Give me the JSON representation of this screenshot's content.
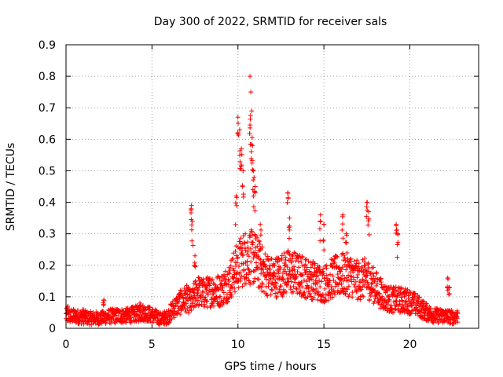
{
  "chart_data": {
    "type": "scatter",
    "title": "Day 300 of 2022, SRMTID for receiver sals",
    "xlabel": "GPS time / hours",
    "ylabel": "SRMTID / TECUs",
    "xlim": [
      0,
      24
    ],
    "ylim": [
      0,
      0.9
    ],
    "xticks": [
      "0",
      "5",
      "10",
      "15",
      "20"
    ],
    "yticks": [
      "0",
      "0.1",
      "0.2",
      "0.3",
      "0.4",
      "0.5",
      "0.6",
      "0.7",
      "0.8",
      "0.9"
    ],
    "grid": true,
    "marker": "+",
    "color": "#ff0000",
    "series": [
      {
        "name": "SRMTID",
        "profile": [
          [
            0.0,
            0.04
          ],
          [
            0.5,
            0.038
          ],
          [
            1.0,
            0.035
          ],
          [
            1.5,
            0.032
          ],
          [
            2.0,
            0.032
          ],
          [
            2.5,
            0.038
          ],
          [
            3.0,
            0.04
          ],
          [
            3.5,
            0.04
          ],
          [
            4.0,
            0.045
          ],
          [
            4.5,
            0.05
          ],
          [
            5.0,
            0.042
          ],
          [
            5.5,
            0.03
          ],
          [
            5.9,
            0.035
          ],
          [
            6.2,
            0.06
          ],
          [
            6.6,
            0.08
          ],
          [
            7.0,
            0.095
          ],
          [
            7.3,
            0.08
          ],
          [
            7.6,
            0.12
          ],
          [
            8.0,
            0.11
          ],
          [
            8.5,
            0.12
          ],
          [
            9.0,
            0.12
          ],
          [
            9.5,
            0.15
          ],
          [
            10.0,
            0.2
          ],
          [
            10.5,
            0.23
          ],
          [
            11.0,
            0.22
          ],
          [
            11.5,
            0.18
          ],
          [
            12.0,
            0.16
          ],
          [
            12.5,
            0.17
          ],
          [
            13.0,
            0.18
          ],
          [
            13.5,
            0.17
          ],
          [
            14.0,
            0.16
          ],
          [
            14.5,
            0.15
          ],
          [
            15.0,
            0.14
          ],
          [
            15.5,
            0.16
          ],
          [
            16.0,
            0.17
          ],
          [
            16.5,
            0.17
          ],
          [
            17.0,
            0.15
          ],
          [
            17.5,
            0.16
          ],
          [
            18.0,
            0.13
          ],
          [
            18.5,
            0.1
          ],
          [
            19.0,
            0.09
          ],
          [
            19.5,
            0.09
          ],
          [
            20.0,
            0.085
          ],
          [
            20.5,
            0.07
          ],
          [
            21.0,
            0.05
          ],
          [
            21.5,
            0.04
          ],
          [
            22.0,
            0.04
          ],
          [
            22.5,
            0.035
          ],
          [
            22.8,
            0.04
          ]
        ],
        "spikes": [
          [
            0.1,
            0.07
          ],
          [
            1.0,
            0.06
          ],
          [
            2.2,
            0.09
          ],
          [
            4.3,
            0.08
          ],
          [
            7.3,
            0.39
          ],
          [
            7.35,
            0.34
          ],
          [
            7.5,
            0.23
          ],
          [
            9.9,
            0.42
          ],
          [
            10.0,
            0.67
          ],
          [
            10.1,
            0.63
          ],
          [
            10.2,
            0.57
          ],
          [
            10.3,
            0.5
          ],
          [
            10.7,
            0.8
          ],
          [
            10.75,
            0.75
          ],
          [
            10.8,
            0.69
          ],
          [
            10.85,
            0.58
          ],
          [
            10.9,
            0.5
          ],
          [
            11.0,
            0.45
          ],
          [
            11.3,
            0.33
          ],
          [
            12.9,
            0.43
          ],
          [
            13.0,
            0.35
          ],
          [
            14.8,
            0.36
          ],
          [
            15.0,
            0.33
          ],
          [
            16.1,
            0.36
          ],
          [
            16.3,
            0.3
          ],
          [
            17.5,
            0.4
          ],
          [
            17.6,
            0.37
          ],
          [
            19.2,
            0.33
          ],
          [
            19.3,
            0.3
          ],
          [
            22.2,
            0.16
          ],
          [
            22.3,
            0.13
          ]
        ]
      }
    ]
  }
}
